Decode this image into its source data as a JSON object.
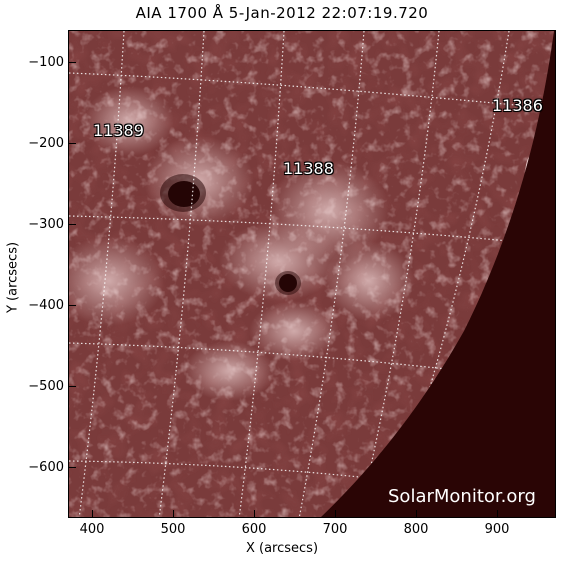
{
  "title": "AIA 1700 Å  5-Jan-2012 22:07:19.720",
  "axes": {
    "xlabel": "X (arcsecs)",
    "ylabel": "Y (arcsecs)",
    "xticks": [
      "400",
      "500",
      "600",
      "700",
      "800",
      "900"
    ],
    "yticks": [
      "−100",
      "−200",
      "−300",
      "−400",
      "−500",
      "−600"
    ]
  },
  "regions": [
    {
      "label": "11389"
    },
    {
      "label": "11388"
    },
    {
      "label": "11386"
    }
  ],
  "watermark": "SolarMonitor.org",
  "colors": {
    "disk": "#7a3b3b",
    "plage": "#f2d7d7",
    "space": "#2a0505",
    "grid": "#ffffff"
  }
}
